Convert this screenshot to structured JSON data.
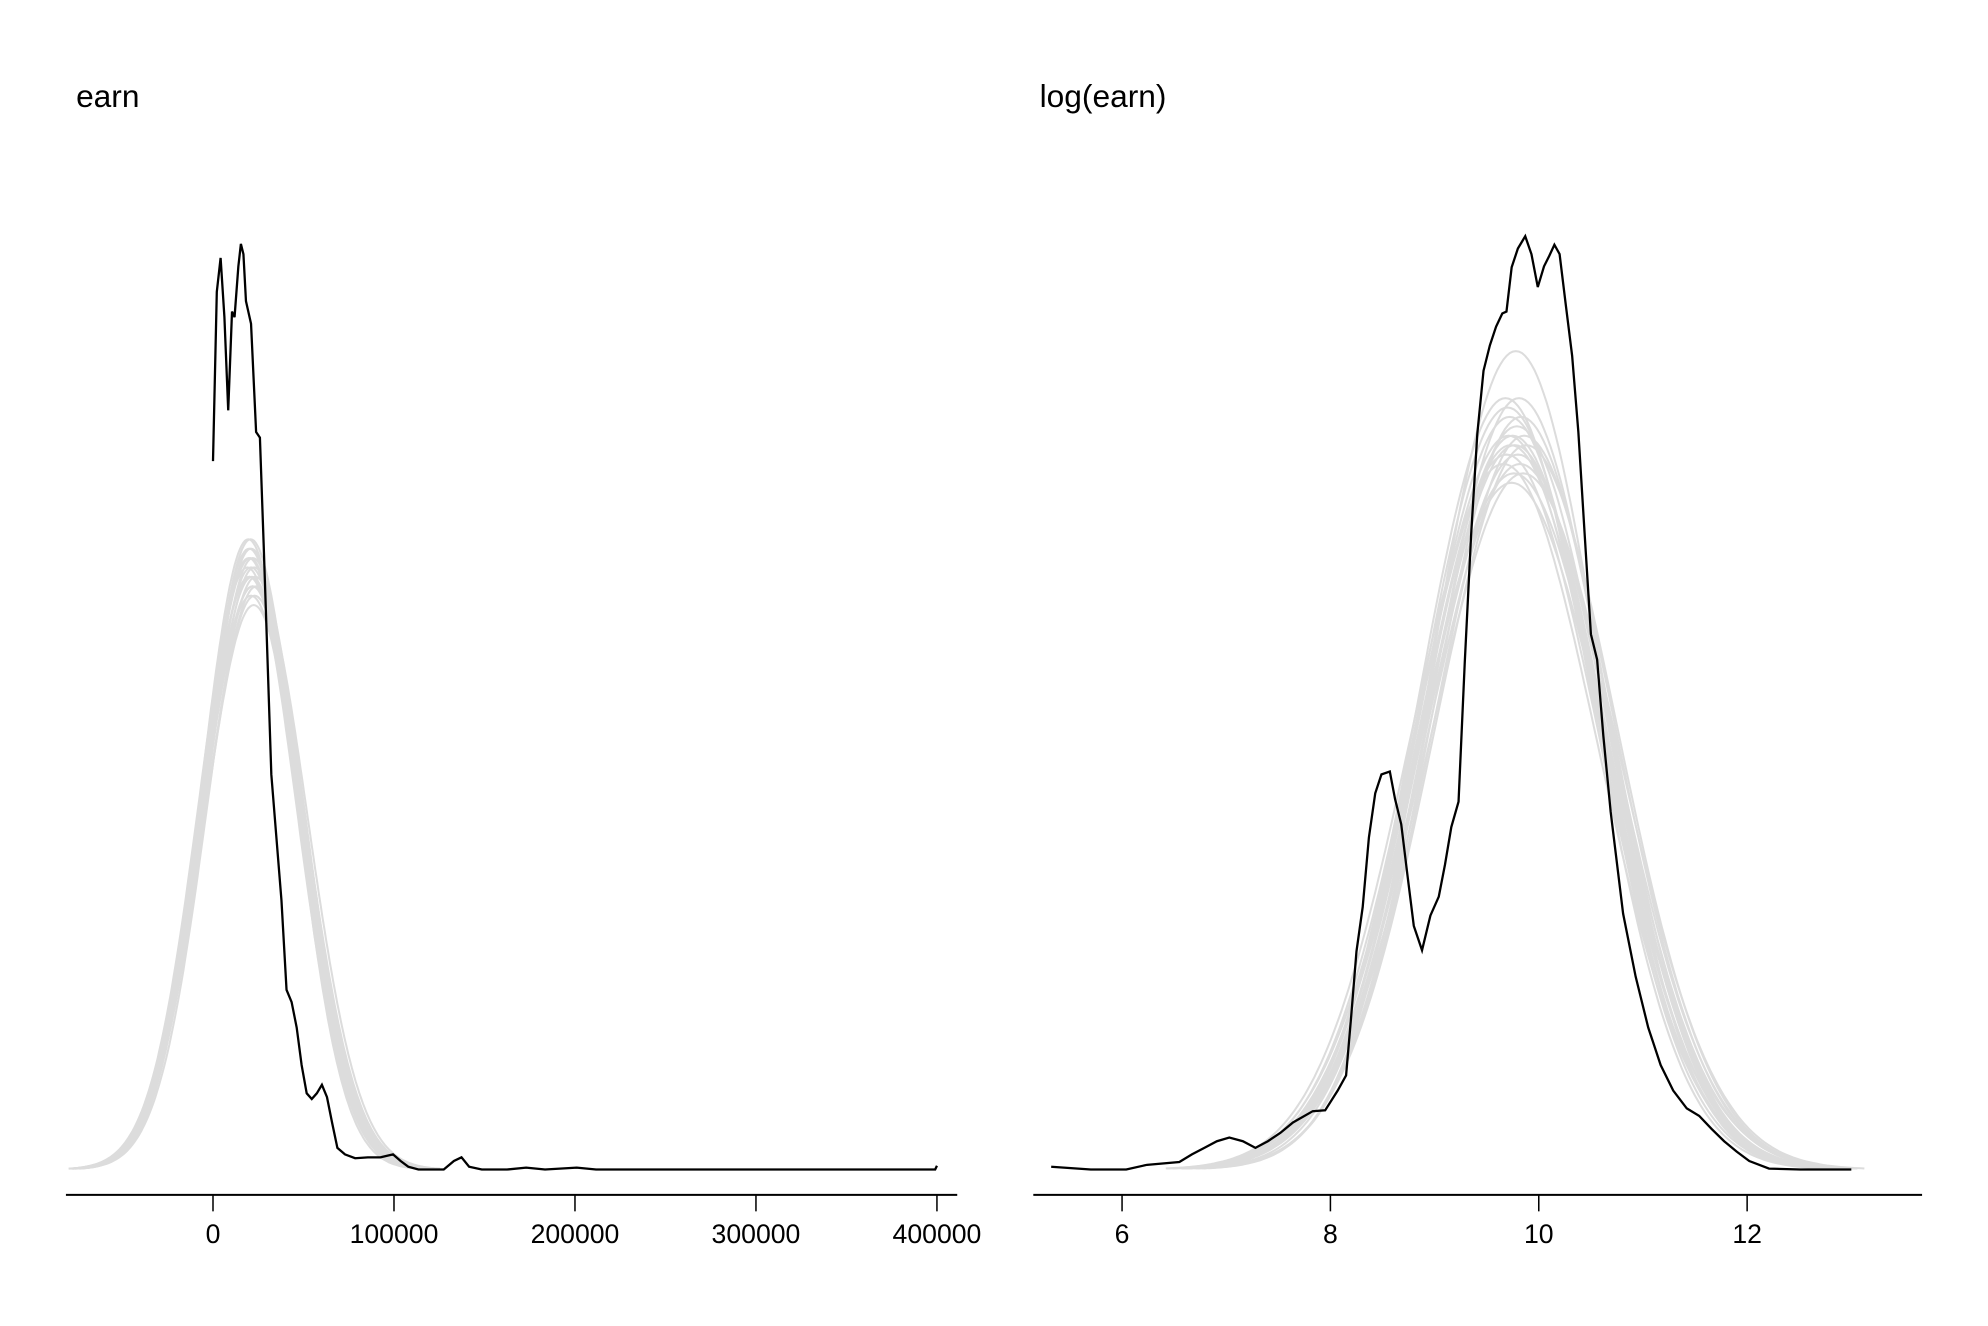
{
  "colors": {
    "observed": "#000000",
    "replicated": "#dcdcdc",
    "axis": "#000000"
  },
  "chart_data": [
    {
      "type": "line",
      "title": "earn",
      "xlim": [
        -80000,
        410000
      ],
      "ylim": [
        0,
        1
      ],
      "grid": false,
      "y_axis_shown": false,
      "x_ticks": [
        0,
        100000,
        200000,
        300000,
        400000
      ],
      "x_tick_labels": [
        "0",
        "100000",
        "200000",
        "300000",
        "400000"
      ],
      "observed": {
        "x": [
          0,
          2100,
          4200,
          6300,
          8400,
          10500,
          11900,
          14000,
          15400,
          16800,
          18200,
          21000,
          23800,
          25900,
          28000,
          30100,
          32200,
          35000,
          37800,
          40600,
          43400,
          46200,
          49000,
          51800,
          54600,
          57400,
          60200,
          63000,
          65800,
          68700,
          72900,
          78500,
          85500,
          92500,
          99500,
          103700,
          107900,
          113500,
          120500,
          127500,
          133100,
          137300,
          141500,
          148500,
          162500,
          173000,
          183500,
          201000,
          211600,
          399000,
          400000
        ],
        "y": [
          0.753,
          0.933,
          0.969,
          0.906,
          0.807,
          0.912,
          0.906,
          0.96,
          0.984,
          0.973,
          0.923,
          0.899,
          0.784,
          0.778,
          0.663,
          0.542,
          0.42,
          0.353,
          0.286,
          0.191,
          0.178,
          0.151,
          0.111,
          0.081,
          0.075,
          0.081,
          0.09,
          0.077,
          0.05,
          0.023,
          0.016,
          0.012,
          0.013,
          0.013,
          0.016,
          0.009,
          0.003,
          0.0,
          0.0,
          0.0,
          0.009,
          0.013,
          0.003,
          0.0,
          0.0,
          0.002,
          0.0,
          0.002,
          0.0,
          0.0,
          0.004
        ]
      },
      "replicates": [
        {
          "mean": 21000,
          "sd": 27000,
          "peak": 0.64
        },
        {
          "mean": 20000,
          "sd": 26500,
          "peak": 0.66
        },
        {
          "mean": 22000,
          "sd": 27500,
          "peak": 0.62
        },
        {
          "mean": 19500,
          "sd": 26000,
          "peak": 0.67
        },
        {
          "mean": 23000,
          "sd": 28000,
          "peak": 0.61
        },
        {
          "mean": 21500,
          "sd": 27200,
          "peak": 0.63
        },
        {
          "mean": 20500,
          "sd": 26800,
          "peak": 0.65
        },
        {
          "mean": 22500,
          "sd": 27800,
          "peak": 0.6
        },
        {
          "mean": 21000,
          "sd": 26200,
          "peak": 0.66
        },
        {
          "mean": 19000,
          "sd": 27000,
          "peak": 0.64
        },
        {
          "mean": 24000,
          "sd": 28200,
          "peak": 0.62
        },
        {
          "mean": 20000,
          "sd": 27400,
          "peak": 0.63
        },
        {
          "mean": 22000,
          "sd": 26600,
          "peak": 0.65
        },
        {
          "mean": 21000,
          "sd": 28000,
          "peak": 0.61
        },
        {
          "mean": 23500,
          "sd": 27000,
          "peak": 0.63
        },
        {
          "mean": 20800,
          "sd": 26400,
          "peak": 0.67
        },
        {
          "mean": 21800,
          "sd": 27600,
          "peak": 0.62
        },
        {
          "mean": 19800,
          "sd": 26900,
          "peak": 0.65
        },
        {
          "mean": 22800,
          "sd": 27300,
          "peak": 0.64
        },
        {
          "mean": 20300,
          "sd": 27700,
          "peak": 0.63
        }
      ]
    },
    {
      "type": "line",
      "title": "log(earn)",
      "xlim": [
        5.3,
        13.9
      ],
      "ylim": [
        0,
        1
      ],
      "grid": false,
      "y_axis_shown": false,
      "x_ticks": [
        6,
        8,
        10,
        12
      ],
      "x_tick_labels": [
        "6",
        "8",
        "10",
        "12"
      ],
      "observed": {
        "x": [
          5.32,
          5.7,
          6.04,
          6.24,
          6.55,
          6.67,
          6.79,
          6.91,
          7.03,
          7.16,
          7.28,
          7.4,
          7.52,
          7.64,
          7.83,
          7.95,
          8.07,
          8.15,
          8.2,
          8.25,
          8.31,
          8.37,
          8.43,
          8.49,
          8.57,
          8.62,
          8.68,
          8.74,
          8.8,
          8.88,
          8.96,
          9.04,
          9.1,
          9.16,
          9.23,
          9.29,
          9.35,
          9.41,
          9.47,
          9.53,
          9.59,
          9.65,
          9.69,
          9.74,
          9.8,
          9.87,
          9.93,
          9.99,
          10.05,
          10.1,
          10.15,
          10.2,
          10.26,
          10.32,
          10.38,
          10.44,
          10.5,
          10.56,
          10.62,
          10.69,
          10.81,
          10.93,
          11.05,
          11.17,
          11.29,
          11.42,
          11.54,
          11.66,
          11.78,
          11.9,
          12.02,
          12.21,
          12.51,
          13.0
        ],
        "y": [
          0.003,
          0.0,
          0.0,
          0.005,
          0.008,
          0.016,
          0.023,
          0.03,
          0.034,
          0.03,
          0.023,
          0.03,
          0.039,
          0.05,
          0.062,
          0.063,
          0.084,
          0.1,
          0.164,
          0.232,
          0.279,
          0.353,
          0.4,
          0.42,
          0.423,
          0.394,
          0.367,
          0.313,
          0.259,
          0.233,
          0.27,
          0.29,
          0.324,
          0.364,
          0.391,
          0.539,
          0.674,
          0.782,
          0.849,
          0.876,
          0.896,
          0.91,
          0.912,
          0.959,
          0.979,
          0.992,
          0.973,
          0.938,
          0.96,
          0.971,
          0.983,
          0.973,
          0.919,
          0.865,
          0.784,
          0.677,
          0.569,
          0.542,
          0.461,
          0.38,
          0.272,
          0.205,
          0.151,
          0.111,
          0.084,
          0.065,
          0.057,
          0.043,
          0.03,
          0.019,
          0.009,
          0.001,
          0.0,
          0.0
        ]
      },
      "replicates": [
        {
          "mean": 9.77,
          "sd": 0.88,
          "peak": 0.77
        },
        {
          "mean": 9.72,
          "sd": 0.86,
          "peak": 0.8
        },
        {
          "mean": 9.82,
          "sd": 0.9,
          "peak": 0.75
        },
        {
          "mean": 9.68,
          "sd": 0.84,
          "peak": 0.82
        },
        {
          "mean": 9.85,
          "sd": 0.91,
          "peak": 0.74
        },
        {
          "mean": 9.75,
          "sd": 0.87,
          "peak": 0.78
        },
        {
          "mean": 9.8,
          "sd": 0.89,
          "peak": 0.76
        },
        {
          "mean": 9.7,
          "sd": 0.85,
          "peak": 0.81
        },
        {
          "mean": 9.78,
          "sd": 0.82,
          "peak": 0.87
        },
        {
          "mean": 9.74,
          "sd": 0.92,
          "peak": 0.73
        },
        {
          "mean": 9.88,
          "sd": 0.88,
          "peak": 0.77
        },
        {
          "mean": 9.66,
          "sd": 0.9,
          "peak": 0.75
        },
        {
          "mean": 9.79,
          "sd": 0.86,
          "peak": 0.79
        },
        {
          "mean": 9.73,
          "sd": 0.88,
          "peak": 0.77
        },
        {
          "mean": 9.83,
          "sd": 0.85,
          "peak": 0.8
        },
        {
          "mean": 9.76,
          "sd": 0.91,
          "peak": 0.74
        },
        {
          "mean": 9.71,
          "sd": 0.87,
          "peak": 0.78
        },
        {
          "mean": 9.81,
          "sd": 0.84,
          "peak": 0.82
        },
        {
          "mean": 9.69,
          "sd": 0.89,
          "peak": 0.76
        },
        {
          "mean": 9.86,
          "sd": 0.87,
          "peak": 0.78
        }
      ]
    }
  ]
}
